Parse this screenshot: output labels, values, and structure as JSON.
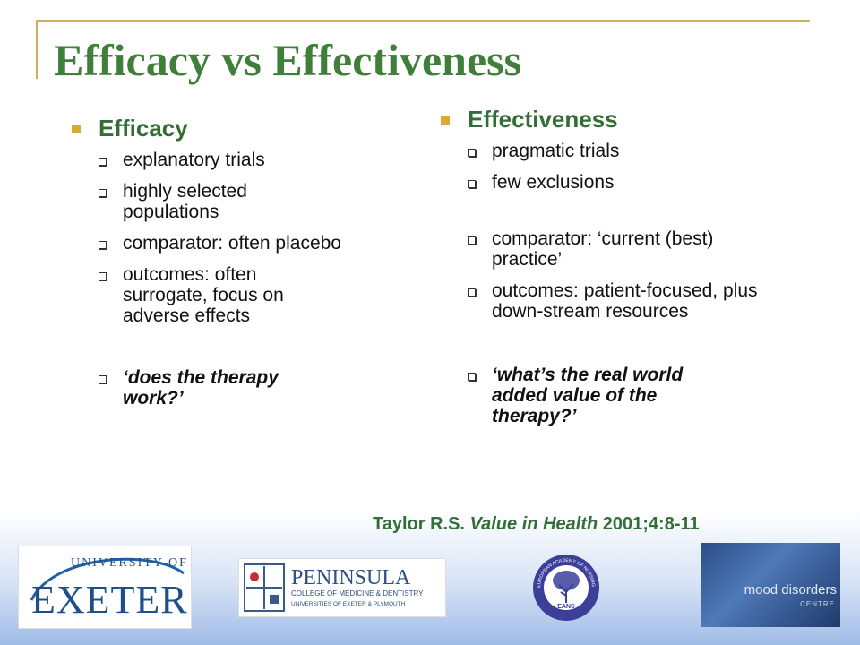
{
  "slide": {
    "title": "Efficacy vs Effectiveness",
    "left": {
      "heading": "Efficacy",
      "items": [
        "explanatory trials",
        "highly selected populations",
        "comparator: often placebo",
        "outcomes: often surrogate, focus on adverse effects"
      ],
      "question": "‘does the therapy work?’"
    },
    "right": {
      "heading": "Effectiveness",
      "items": [
        "pragmatic trials",
        "few exclusions",
        "comparator: ‘current (best) practice’",
        "outcomes: patient-focused, plus down-stream resources"
      ],
      "question": "‘what’s the real world added value of the therapy?’"
    },
    "citation": {
      "author": "Taylor R.S.",
      "journal": "Value in Health",
      "ref": "2001;4:8-11"
    }
  },
  "logos": {
    "exeter_top": "UNIVERSITY OF",
    "exeter_main": "EXETER",
    "peninsula_main": "PENINSULA",
    "peninsula_sub1": "COLLEGE OF MEDICINE & DENTISTRY",
    "peninsula_sub2": "UNIVERSITIES OF EXETER & PLYMOUTH",
    "eans_ring": "EUROPEAN ACADEMY OF NURSING SCIENCE",
    "eans_center": "EANS",
    "mood_main": "mood disorders",
    "mood_sub": "CENTRE"
  },
  "colors": {
    "title_green": "#3f7f3a",
    "heading_green": "#336f35",
    "bullet_gold": "#d7aa3a",
    "frame_gold": "#c9b25a"
  }
}
